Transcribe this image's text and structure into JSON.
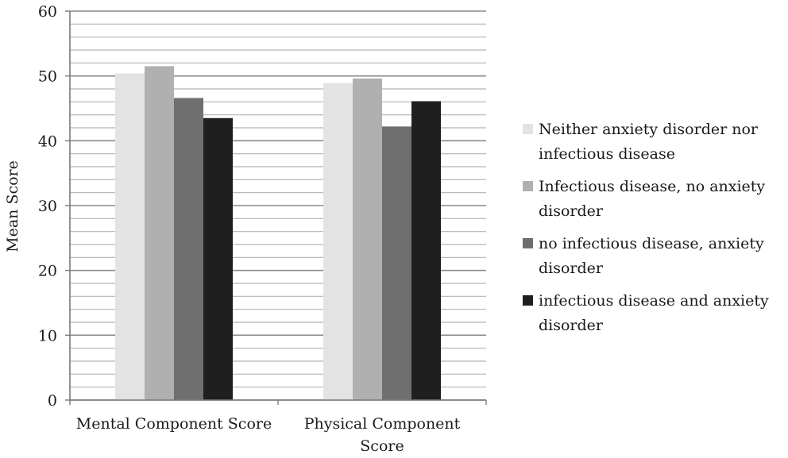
{
  "chart_data": {
    "type": "bar",
    "title": "",
    "xlabel": "",
    "ylabel": "Mean Score",
    "ylim": [
      0,
      60
    ],
    "yticks": [
      0,
      10,
      20,
      30,
      40,
      50,
      60
    ],
    "minor_gridline_step": 2,
    "grid": true,
    "legend_position": "right",
    "categories": [
      "Mental Component Score",
      "Physical Component Score"
    ],
    "series": [
      {
        "name": "Neither anxiety disorder nor infectious disease",
        "color": "#e3e3e3",
        "values": [
          50.4,
          48.9
        ]
      },
      {
        "name": "Infectious disease, no anxiety disorder",
        "color": "#b0b0b0",
        "values": [
          51.5,
          49.6
        ]
      },
      {
        "name": "no infectious disease, anxiety disorder",
        "color": "#6f6f6f",
        "values": [
          46.6,
          42.2
        ]
      },
      {
        "name": "infectious disease and anxiety disorder",
        "color": "#1f1f1f",
        "values": [
          43.5,
          46.1
        ]
      }
    ]
  }
}
